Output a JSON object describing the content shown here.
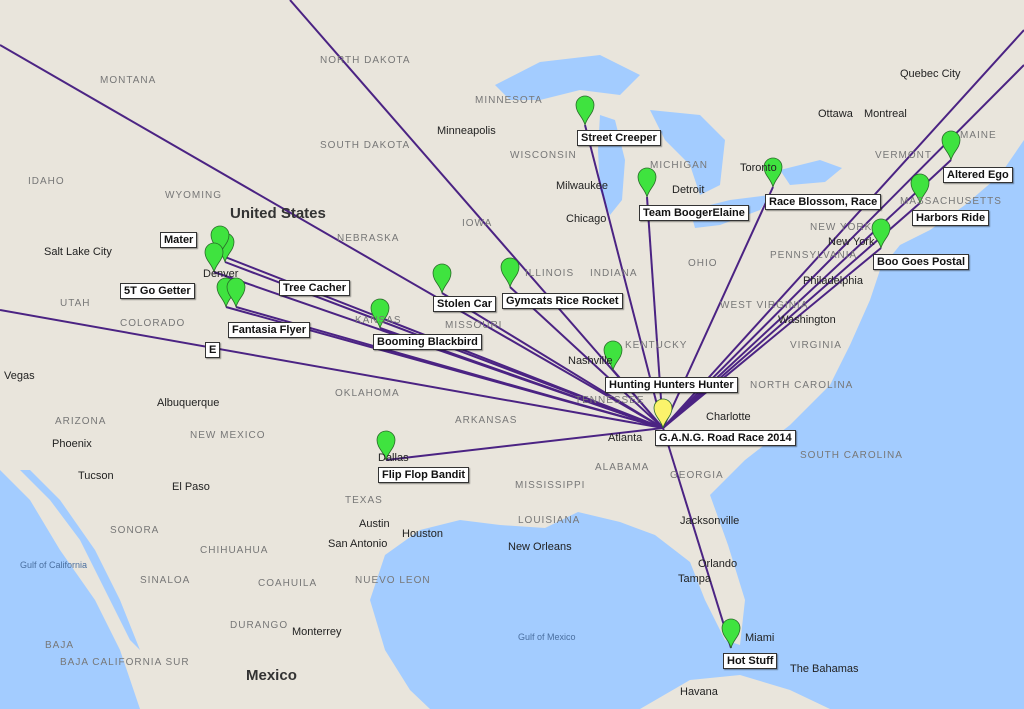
{
  "colors": {
    "land": "#e9e5dc",
    "water": "#a3ccff",
    "route": "#3b0f7a",
    "pin_green": "#3fe33f",
    "pin_origin": "#fbf36b"
  },
  "origin": {
    "name": "G.A.N.G. Road Race 2014",
    "icon": "map-pin-yellow-icon"
  },
  "racers": [
    {
      "name": "Street Creeper"
    },
    {
      "name": "Team BoogerElaine"
    },
    {
      "name": "Race Blossom, Race"
    },
    {
      "name": "Altered Ego"
    },
    {
      "name": "Harbors Ride"
    },
    {
      "name": "Boo Goes Postal"
    },
    {
      "name": "Stolen Car"
    },
    {
      "name": "Gymcats Rice Rocket"
    },
    {
      "name": "Booming Blackbird"
    },
    {
      "name": "Hunting Hunters Hunter"
    },
    {
      "name": "Flip Flop Bandit"
    },
    {
      "name": "Hot Stuff"
    },
    {
      "name": "Tree Cacher"
    },
    {
      "name": "Mater"
    },
    {
      "name": "5T Go Getter"
    },
    {
      "name": "E"
    },
    {
      "name": "Fantasia Flyer"
    }
  ],
  "states": [
    "MONTANA",
    "NORTH DAKOTA",
    "SOUTH DAKOTA",
    "MINNESOTA",
    "WISCONSIN",
    "MICHIGAN",
    "IOWA",
    "NEBRASKA",
    "WYOMING",
    "IDAHO",
    "UTAH",
    "COLORADO",
    "KANSAS",
    "MISSOURI",
    "ILLINOIS",
    "INDIANA",
    "OHIO",
    "PENNSYLVANIA",
    "NEW YORK",
    "VERMONT",
    "MAINE",
    "MASSACHUSETTS",
    "WEST VIRGINIA",
    "VIRGINIA",
    "KENTUCKY",
    "TENNESSEE",
    "NORTH CAROLINA",
    "SOUTH CAROLINA",
    "GEORGIA",
    "ALABAMA",
    "MISSISSIPPI",
    "ARKANSAS",
    "OKLAHOMA",
    "TEXAS",
    "LOUISIANA",
    "NEW MEXICO",
    "ARIZONA",
    "SONORA",
    "CHIHUAHUA",
    "COAHUILA",
    "NUEVO LEON",
    "DURANGO",
    "SINALOA",
    "BAJA CALIFORNIA SUR",
    "BAJA"
  ],
  "cities": [
    "Minneapolis",
    "Milwaukee",
    "Chicago",
    "Detroit",
    "Toronto",
    "Ottawa",
    "Montreal",
    "Quebec City",
    "Salt Lake City",
    "Denver",
    "Vegas",
    "Albuquerque",
    "Phoenix",
    "Tucson",
    "El Paso",
    "Austin",
    "San Antonio",
    "Houston",
    "Dallas",
    "New Orleans",
    "Nashville",
    "Atlanta",
    "Charlotte",
    "Washington",
    "Philadelphia",
    "New York",
    "Jacksonville",
    "Orlando",
    "Tampa",
    "Miami",
    "Havana",
    "Monterrey",
    "The Bahamas"
  ],
  "country_labels": [
    "United States",
    "Mexico"
  ],
  "water_labels": [
    "Gulf of Mexico",
    "Gulf of California"
  ]
}
